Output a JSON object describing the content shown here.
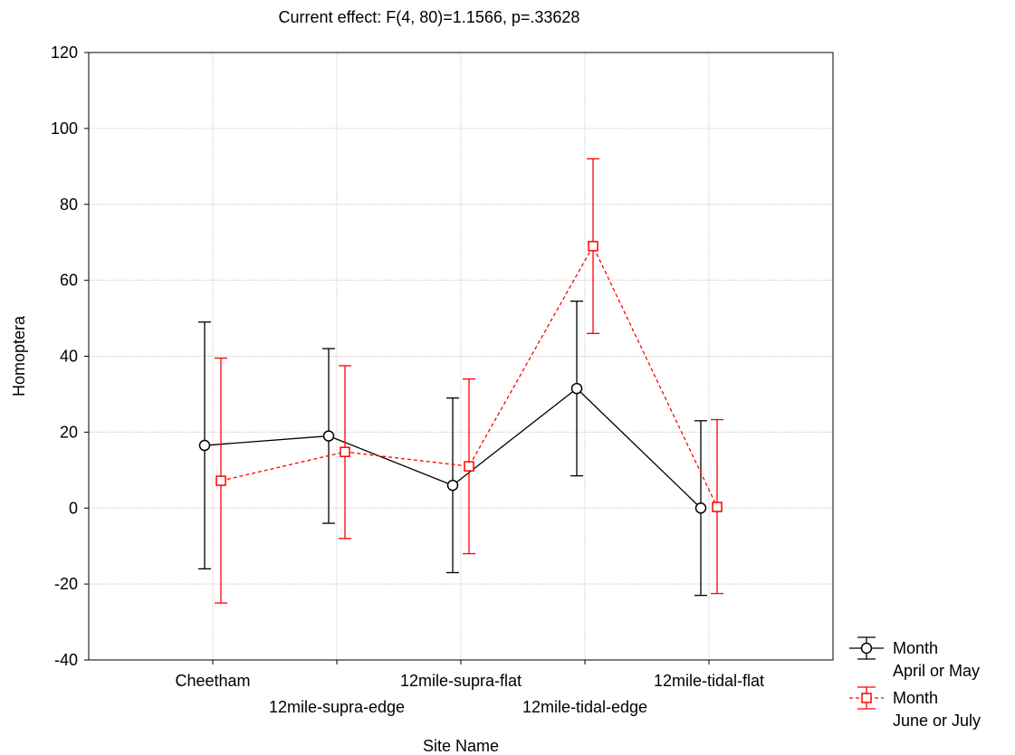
{
  "chart_data": {
    "type": "line",
    "title": "Current effect: F(4, 80)=1.1566, p=.33628",
    "xlabel": "Site Name",
    "ylabel": "Homoptera",
    "ylim": [
      -40,
      120
    ],
    "yticks": [
      -40,
      -20,
      0,
      20,
      40,
      60,
      80,
      100,
      120
    ],
    "grid": true,
    "categories": [
      "Cheetham",
      "12mile-supra-edge",
      "12mile-supra-flat",
      "12mile-tidal-edge",
      "12mile-tidal-flat"
    ],
    "series": [
      {
        "legend_title": "Month",
        "name": "April or May",
        "color": "#000000",
        "marker": "circle",
        "line_style": "solid",
        "values": [
          16.5,
          19,
          6,
          31.5,
          0
        ],
        "err_low": [
          -16,
          -4,
          -17,
          8.5,
          -23
        ],
        "err_high": [
          49,
          42,
          29,
          54.5,
          23
        ]
      },
      {
        "legend_title": "Month",
        "name": "June or July",
        "color": "#ff0000",
        "marker": "square",
        "line_style": "dashed",
        "values": [
          7.2,
          14.8,
          11,
          69,
          0.3
        ],
        "err_low": [
          -25,
          -8,
          -12,
          46,
          -22.5
        ],
        "err_high": [
          39.5,
          37.5,
          34,
          92,
          23.3
        ]
      }
    ],
    "legend_position": "bottom-right"
  }
}
